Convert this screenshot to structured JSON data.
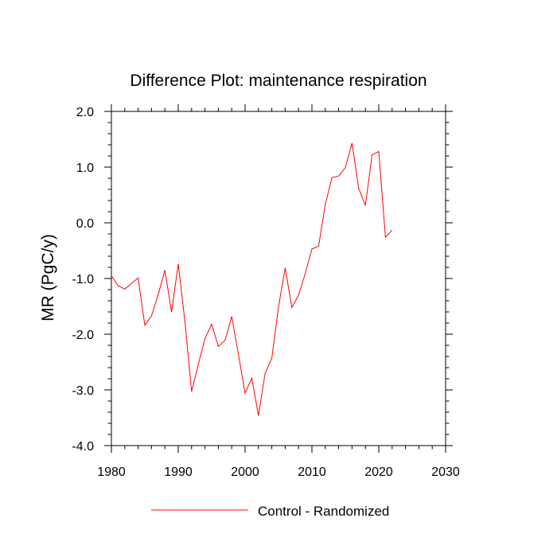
{
  "chart_data": {
    "type": "line",
    "title": "Difference Plot: maintenance respiration",
    "xlabel": "",
    "ylabel": "MR  (PgC/y)",
    "xlim": [
      1980,
      2030
    ],
    "ylim": [
      -4.0,
      2.0
    ],
    "x_ticks": [
      1980,
      1990,
      2000,
      2010,
      2020,
      2030
    ],
    "x_tick_labels": [
      "1980",
      "1990",
      "2000",
      "2010",
      "2020",
      "2030"
    ],
    "y_ticks": [
      -4.0,
      -3.0,
      -2.0,
      -1.0,
      0.0,
      1.0,
      2.0
    ],
    "y_tick_labels": [
      "-4.0",
      "-3.0",
      "-2.0",
      "-1.0",
      "0.0",
      "1.0",
      "2.0"
    ],
    "grid": false,
    "legend_position": "bottom-center",
    "series": [
      {
        "name": "Control - Randomized",
        "color": "#ff0000",
        "x": [
          1980,
          1981,
          1982,
          1983,
          1984,
          1985,
          1986,
          1987,
          1988,
          1989,
          1990,
          1991,
          1992,
          1993,
          1994,
          1995,
          1996,
          1997,
          1998,
          1999,
          2000,
          2001,
          2002,
          2003,
          2004,
          2005,
          2006,
          2007,
          2008,
          2009,
          2010,
          2011,
          2012,
          2013,
          2014,
          2015,
          2016,
          2017,
          2018,
          2019,
          2020,
          2021,
          2022
        ],
        "y": [
          -0.95,
          -1.13,
          -1.19,
          -1.09,
          -0.99,
          -1.84,
          -1.67,
          -1.29,
          -0.85,
          -1.6,
          -0.74,
          -1.77,
          -3.03,
          -2.54,
          -2.08,
          -1.82,
          -2.22,
          -2.11,
          -1.68,
          -2.36,
          -3.06,
          -2.79,
          -3.46,
          -2.7,
          -2.43,
          -1.51,
          -0.81,
          -1.52,
          -1.3,
          -0.91,
          -0.47,
          -0.42,
          0.33,
          0.81,
          0.84,
          0.99,
          1.43,
          0.62,
          0.31,
          1.22,
          1.28,
          -0.26,
          -0.13
        ]
      }
    ]
  }
}
